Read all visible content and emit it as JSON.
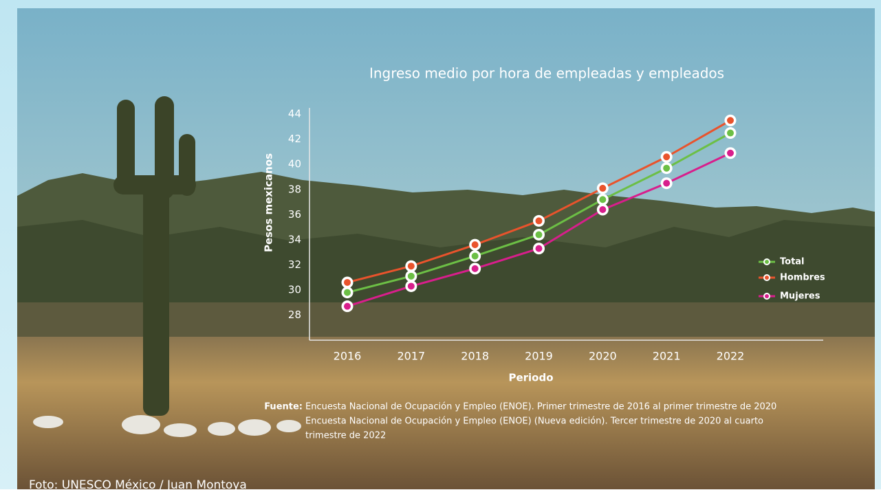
{
  "chart_data": {
    "type": "line",
    "title": "Ingreso medio por hora de empleadas y empleados",
    "y_label": "Pesos mexicanos",
    "x_label": "Periodo",
    "categories": [
      "2016",
      "2017",
      "2018",
      "2019",
      "2020",
      "2021",
      "2022"
    ],
    "series": [
      {
        "name": "Total",
        "color": "#6cbf45",
        "values": [
          29.8,
          31.1,
          32.7,
          34.4,
          37.2,
          39.7,
          42.5
        ]
      },
      {
        "name": "Hombres",
        "color": "#e9532c",
        "values": [
          30.6,
          31.9,
          33.6,
          35.5,
          38.1,
          40.6,
          43.5
        ]
      },
      {
        "name": "Mujeres",
        "color": "#d81e8c",
        "values": [
          28.7,
          30.3,
          31.7,
          33.3,
          36.4,
          38.5,
          40.9
        ]
      }
    ],
    "ylim": [
      26,
      44.5
    ],
    "yticks": [
      28,
      30,
      32,
      34,
      36,
      38,
      40,
      42,
      44
    ],
    "grid": false,
    "legend": "right"
  },
  "source": {
    "label": "Fuente:",
    "lines": [
      "Encuesta Nacional de Ocupación y Empleo (ENOE). Primer trimestre de 2016 al primer trimestre de 2020",
      "Encuesta Nacional de Ocupación y Empleo (ENOE) (Nueva edición). Tercer trimestre de 2020 al cuarto",
      "trimestre de 2022"
    ]
  },
  "photo_credit": "Foto: UNESCO México / Juan Montoya"
}
